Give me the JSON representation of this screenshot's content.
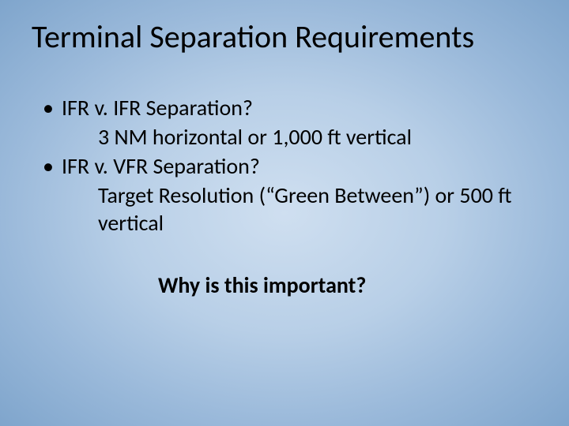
{
  "slide": {
    "title": "Terminal Separation Requirements",
    "bullets": [
      {
        "label": "IFR v. IFR Separation?",
        "detail": "3 NM horizontal or 1,000 ft vertical"
      },
      {
        "label": "IFR v. VFR Separation?",
        "detail": "Target Resolution (“Green Between”) or 500 ft vertical"
      }
    ],
    "question": "Why is this important?",
    "bullet_glyph": "•",
    "style": {
      "background_gradient_center": "#cfdff0",
      "background_gradient_mid": "#b8cfe7",
      "background_gradient_outer": "#7fa5cc",
      "title_fontsize": 40,
      "body_fontsize": 28,
      "question_fontsize": 28,
      "text_color": "#000000",
      "font_family": "Calibri"
    }
  }
}
